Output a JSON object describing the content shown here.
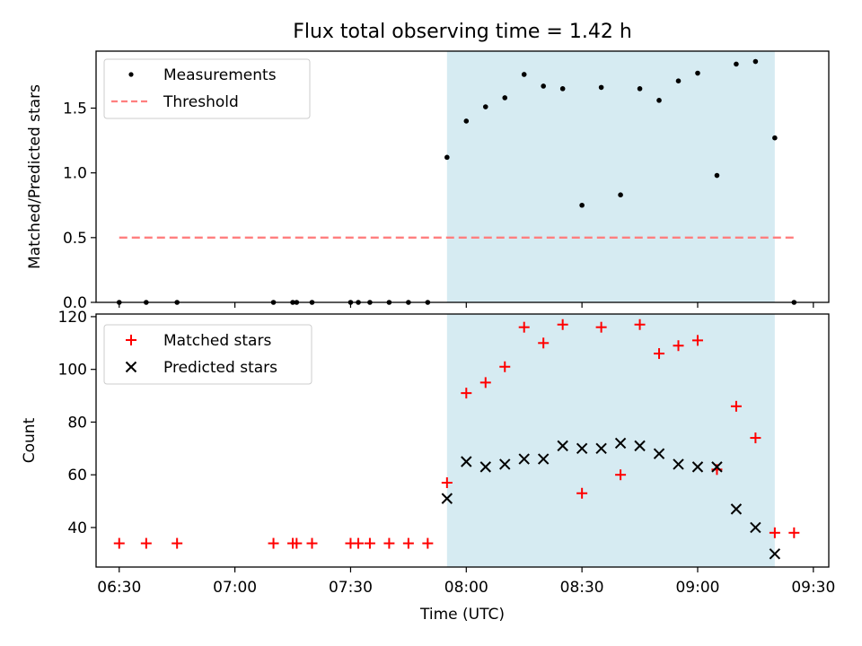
{
  "title": "Flux total observing time = 1.42 h",
  "colors": {
    "shade": "#add8e6",
    "threshold": "#ff7f7f",
    "matched": "#ff0000",
    "measurement": "#000000",
    "predicted": "#000000"
  },
  "chart_data": [
    {
      "type": "scatter",
      "ylabel": "Matched/Predicted stars",
      "xlim": [
        "06:24",
        "09:34"
      ],
      "ylim": [
        0,
        1.94
      ],
      "yticks": [
        "0.0",
        "0.5",
        "1.0",
        "1.5"
      ],
      "shaded_region": {
        "from": "07:55",
        "to": "09:20"
      },
      "legend": {
        "position": "top-left",
        "entries": [
          "Measurements",
          "Threshold"
        ]
      },
      "series": [
        {
          "name": "Measurements",
          "marker": "dot",
          "points": [
            [
              "06:30",
              0
            ],
            [
              "06:37",
              0
            ],
            [
              "06:45",
              0
            ],
            [
              "07:10",
              0
            ],
            [
              "07:15",
              0
            ],
            [
              "07:16",
              0
            ],
            [
              "07:20",
              0
            ],
            [
              "07:30",
              0
            ],
            [
              "07:32",
              0
            ],
            [
              "07:35",
              0
            ],
            [
              "07:40",
              0
            ],
            [
              "07:45",
              0
            ],
            [
              "07:50",
              0
            ],
            [
              "07:55",
              1.12
            ],
            [
              "08:00",
              1.4
            ],
            [
              "08:05",
              1.51
            ],
            [
              "08:10",
              1.58
            ],
            [
              "08:15",
              1.76
            ],
            [
              "08:20",
              1.67
            ],
            [
              "08:25",
              1.65
            ],
            [
              "08:30",
              0.75
            ],
            [
              "08:35",
              1.66
            ],
            [
              "08:40",
              0.83
            ],
            [
              "08:45",
              1.65
            ],
            [
              "08:50",
              1.56
            ],
            [
              "08:55",
              1.71
            ],
            [
              "09:00",
              1.77
            ],
            [
              "09:05",
              0.98
            ],
            [
              "09:10",
              1.84
            ],
            [
              "09:15",
              1.86
            ],
            [
              "09:20",
              1.27
            ],
            [
              "09:25",
              0
            ]
          ]
        },
        {
          "name": "Threshold",
          "style": "dashed",
          "points": [
            [
              "06:30",
              0.5
            ],
            [
              "09:25",
              0.5
            ]
          ]
        }
      ]
    },
    {
      "type": "scatter",
      "xlabel": "Time (UTC)",
      "ylabel": "Count",
      "xlim": [
        "06:24",
        "09:34"
      ],
      "ylim": [
        25,
        121
      ],
      "yticks": [
        "40",
        "60",
        "80",
        "100",
        "120"
      ],
      "xticks": [
        "06:30",
        "07:00",
        "07:30",
        "08:00",
        "08:30",
        "09:00",
        "09:30"
      ],
      "shaded_region": {
        "from": "07:55",
        "to": "09:20"
      },
      "legend": {
        "position": "top-left",
        "entries": [
          "Matched stars",
          "Predicted stars"
        ]
      },
      "series": [
        {
          "name": "Matched stars",
          "marker": "plus",
          "points": [
            [
              "06:30",
              34
            ],
            [
              "06:37",
              34
            ],
            [
              "06:45",
              34
            ],
            [
              "07:10",
              34
            ],
            [
              "07:15",
              34
            ],
            [
              "07:16",
              34
            ],
            [
              "07:20",
              34
            ],
            [
              "07:30",
              34
            ],
            [
              "07:32",
              34
            ],
            [
              "07:35",
              34
            ],
            [
              "07:40",
              34
            ],
            [
              "07:45",
              34
            ],
            [
              "07:50",
              34
            ],
            [
              "07:55",
              57
            ],
            [
              "08:00",
              91
            ],
            [
              "08:05",
              95
            ],
            [
              "08:10",
              101
            ],
            [
              "08:15",
              116
            ],
            [
              "08:20",
              110
            ],
            [
              "08:25",
              117
            ],
            [
              "08:30",
              53
            ],
            [
              "08:35",
              116
            ],
            [
              "08:40",
              60
            ],
            [
              "08:45",
              117
            ],
            [
              "08:50",
              106
            ],
            [
              "08:55",
              109
            ],
            [
              "09:00",
              111
            ],
            [
              "09:05",
              62
            ],
            [
              "09:10",
              86
            ],
            [
              "09:15",
              74
            ],
            [
              "09:20",
              38
            ],
            [
              "09:25",
              38
            ]
          ]
        },
        {
          "name": "Predicted stars",
          "marker": "x",
          "points": [
            [
              "07:55",
              51
            ],
            [
              "08:00",
              65
            ],
            [
              "08:05",
              63
            ],
            [
              "08:10",
              64
            ],
            [
              "08:15",
              66
            ],
            [
              "08:20",
              66
            ],
            [
              "08:25",
              71
            ],
            [
              "08:30",
              70
            ],
            [
              "08:35",
              70
            ],
            [
              "08:40",
              72
            ],
            [
              "08:45",
              71
            ],
            [
              "08:50",
              68
            ],
            [
              "08:55",
              64
            ],
            [
              "09:00",
              63
            ],
            [
              "09:05",
              63
            ],
            [
              "09:10",
              47
            ],
            [
              "09:15",
              40
            ],
            [
              "09:20",
              30
            ]
          ]
        }
      ]
    }
  ]
}
